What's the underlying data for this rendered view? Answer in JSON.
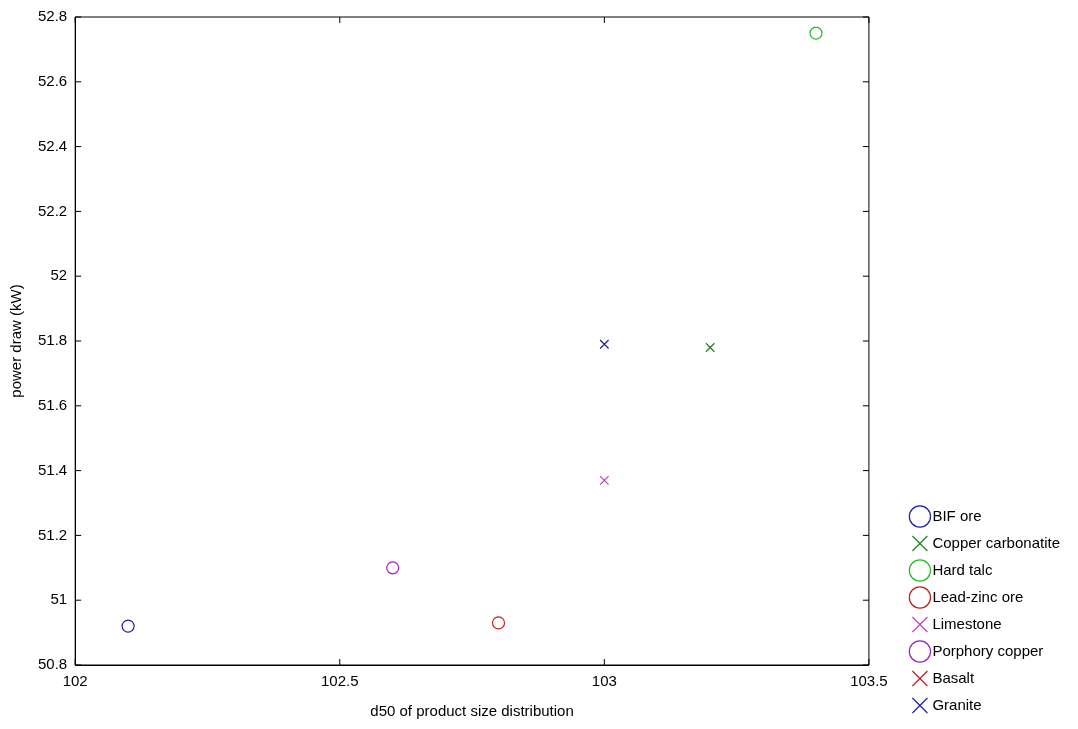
{
  "chart_data": {
    "type": "scatter",
    "xlabel": "d50 of product size distribution",
    "ylabel": "power draw (kW)",
    "xlim": [
      102,
      103.5
    ],
    "xticks": [
      102,
      102.5,
      103,
      103.5
    ],
    "ylim": [
      50.8,
      52.8
    ],
    "yticks": [
      50.8,
      51,
      51.2,
      51.4,
      51.6,
      51.8,
      52,
      52.2,
      52.4,
      52.6,
      52.8
    ],
    "grid": false,
    "legend": "bottom right",
    "series": [
      {
        "name": "BIF ore",
        "color": "#2020a0",
        "marker": "circle",
        "x": [
          102.1
        ],
        "values": [
          50.92
        ]
      },
      {
        "name": "Copper carbonatite",
        "color": "#208020",
        "marker": "cross",
        "x": [
          103.2
        ],
        "values": [
          51.78
        ]
      },
      {
        "name": "Hard talc",
        "color": "#20c020",
        "marker": "circle",
        "x": [
          103.4
        ],
        "values": [
          52.75
        ]
      },
      {
        "name": "Lead-zinc ore",
        "color": "#c02020",
        "marker": "circle",
        "x": [
          102.8
        ],
        "values": [
          50.93
        ]
      },
      {
        "name": "Limestone",
        "color": "#c040c0",
        "marker": "cross",
        "x": [
          103.0
        ],
        "values": [
          51.37
        ]
      },
      {
        "name": "Porphory copper",
        "color": "#a020c0",
        "marker": "circle",
        "x": [
          102.6
        ],
        "values": [
          51.1
        ]
      },
      {
        "name": "Basalt",
        "color": "#c02020",
        "marker": "cross",
        "x": [
          null
        ],
        "values": [
          null
        ]
      },
      {
        "name": "Granite",
        "color": "#2020a0",
        "marker": "cross",
        "x": [
          103.0
        ],
        "values": [
          51.79
        ]
      }
    ]
  }
}
